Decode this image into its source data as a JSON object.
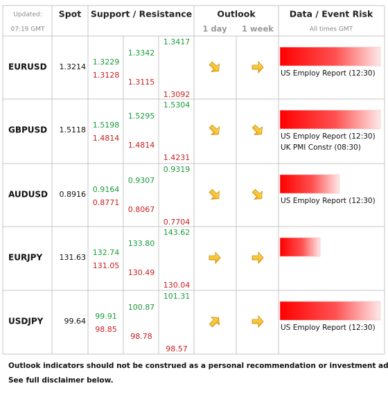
{
  "header": {
    "updated": "Updated:",
    "time": "07:19 GMT",
    "spot": "Spot",
    "sr": "Support / Resistance",
    "outlook": "Outlook",
    "day": "1 day",
    "week": "1 week",
    "data": "Data / Event Risk",
    "tz": "All times GMT"
  },
  "risk_range": [
    0,
    100
  ],
  "rows": [
    {
      "pair": "EURUSD",
      "spot": "1.3214",
      "levels": [
        [
          "1.3229",
          "1.3128"
        ],
        [
          "1.3342",
          "1.3115"
        ],
        [
          "1.3417",
          "1.3092"
        ]
      ],
      "outlook": [
        "down-right",
        "right"
      ],
      "risk": 100,
      "events": [
        "US Employ Report (12:30)"
      ]
    },
    {
      "pair": "GBPUSD",
      "spot": "1.5118",
      "levels": [
        [
          "1.5198",
          "1.4814"
        ],
        [
          "1.5295",
          "1.4814"
        ],
        [
          "1.5304",
          "1.4231"
        ]
      ],
      "outlook": [
        "down-right",
        "down-right"
      ],
      "risk": 100,
      "events": [
        "US Employ Report (12:30)",
        "UK PMI Constr (08:30)"
      ]
    },
    {
      "pair": "AUDUSD",
      "spot": "0.8916",
      "levels": [
        [
          "0.9164",
          "0.8771"
        ],
        [
          "0.9307",
          "0.8067"
        ],
        [
          "0.9319",
          "0.7704"
        ]
      ],
      "outlook": [
        "down-right",
        "down-right"
      ],
      "risk": 59,
      "events": [
        "US Employ Report (12:30)"
      ]
    },
    {
      "pair": "EURJPY",
      "spot": "131.63",
      "levels": [
        [
          "132.74",
          "131.05"
        ],
        [
          "133.80",
          "130.49"
        ],
        [
          "143.62",
          "130.04"
        ]
      ],
      "outlook": [
        "right",
        "right"
      ],
      "risk": 40,
      "events": []
    },
    {
      "pair": "USDJPY",
      "spot": "99.64",
      "levels": [
        [
          "99.91",
          "98.85"
        ],
        [
          "100.87",
          "98.78"
        ],
        [
          "101.31",
          "98.57"
        ]
      ],
      "outlook": [
        "up-right",
        "right"
      ],
      "risk": 100,
      "events": [
        "US Employ Report (12:30)"
      ]
    }
  ],
  "footer": [
    "Outlook indicators should not be construed as a personal recommendation or investment advice.",
    "See full disclaimer below."
  ]
}
